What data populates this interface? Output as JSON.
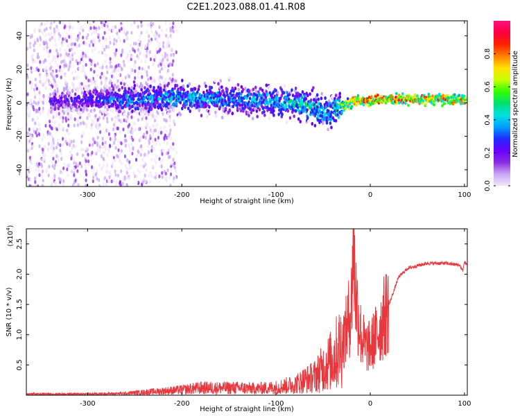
{
  "title": "C2E1.2023.088.01.41.R08",
  "chart_data": [
    {
      "type": "heatmap",
      "xlabel": "Height of straight line (km)",
      "ylabel": "Frequency (Hz)",
      "xlim": [
        -365,
        103
      ],
      "ylim": [
        -50,
        49
      ],
      "x_ticks": [
        -300,
        -200,
        -100,
        0,
        100
      ],
      "y_ticks": [
        -40,
        -20,
        0,
        20,
        40
      ],
      "colorbar": {
        "label": "Normalized spectral amplitude",
        "range": [
          0.0,
          1.0
        ],
        "ticks": [
          0.0,
          0.2,
          0.4,
          0.6,
          0.8
        ],
        "colormap": [
          "#f2e6fb",
          "#c9a6f5",
          "#8a2be2",
          "#6a00ff",
          "#1f2bff",
          "#00a0ff",
          "#00e0e0",
          "#00e070",
          "#30ff00",
          "#c8ff00",
          "#ffe000",
          "#ff8000",
          "#ff2000",
          "#ff0040",
          "#ff1080"
        ]
      },
      "features": {
        "central_band_frequency_hz": [
          [
            -330,
            1
          ],
          [
            -300,
            2
          ],
          [
            -250,
            2
          ],
          [
            -200,
            3
          ],
          [
            -150,
            2
          ],
          [
            -100,
            1
          ],
          [
            -75,
            -1
          ],
          [
            -55,
            -4
          ],
          [
            -45,
            -6
          ],
          [
            -35,
            -3
          ],
          [
            -25,
            -1
          ],
          [
            -15,
            1
          ],
          [
            0,
            2
          ],
          [
            20,
            2
          ],
          [
            50,
            2
          ],
          [
            80,
            2
          ],
          [
            100,
            2
          ]
        ],
        "band_peak_amplitude": [
          [
            -330,
            0.25
          ],
          [
            -300,
            0.3
          ],
          [
            -250,
            0.4
          ],
          [
            -200,
            0.45
          ],
          [
            -150,
            0.4
          ],
          [
            -100,
            0.45
          ],
          [
            -75,
            0.5
          ],
          [
            -55,
            0.5
          ],
          [
            -45,
            0.45
          ],
          [
            -30,
            0.6
          ],
          [
            -15,
            0.8
          ],
          [
            0,
            0.85
          ],
          [
            20,
            0.85
          ],
          [
            50,
            0.8
          ],
          [
            80,
            0.8
          ],
          [
            100,
            0.75
          ]
        ],
        "noise_region_x": [
          -365,
          -205
        ]
      }
    },
    {
      "type": "line",
      "xlabel": "Height of straight line (km)",
      "ylabel": "SNR (10 * v/v)",
      "y_scale_label": "(x10",
      "y_scale_exponent": "4",
      "xlim": [
        -365,
        103
      ],
      "ylim": [
        0,
        2.75
      ],
      "x_ticks": [
        -300,
        -200,
        -100,
        0,
        100
      ],
      "y_ticks": [
        0.5,
        1.0,
        1.5,
        2.0,
        2.5
      ],
      "y_tick_labels": [
        "0.5",
        "1.0",
        "1.5",
        "2.0",
        "2.5"
      ],
      "line_color": "#e8383d",
      "series": [
        {
          "x": [
            -365,
            -340,
            -300,
            -260,
            -240,
            -220,
            -200,
            -180,
            -160,
            -140,
            -120,
            -100,
            -80,
            -70,
            -60,
            -50,
            -40,
            -30,
            -25,
            -20,
            -18,
            -15,
            -10,
            -5,
            0,
            5,
            10,
            20,
            30,
            40,
            60,
            80,
            95,
            98,
            100,
            103
          ],
          "y": [
            0.02,
            0.02,
            0.02,
            0.03,
            0.05,
            0.07,
            0.09,
            0.12,
            0.12,
            0.12,
            0.11,
            0.13,
            0.18,
            0.25,
            0.3,
            0.45,
            0.6,
            0.85,
            1.1,
            1.5,
            2.6,
            1.6,
            1.0,
            0.8,
            0.8,
            0.95,
            1.1,
            1.5,
            1.95,
            2.1,
            2.18,
            2.18,
            2.15,
            2.05,
            2.2,
            2.15
          ]
        }
      ]
    }
  ]
}
